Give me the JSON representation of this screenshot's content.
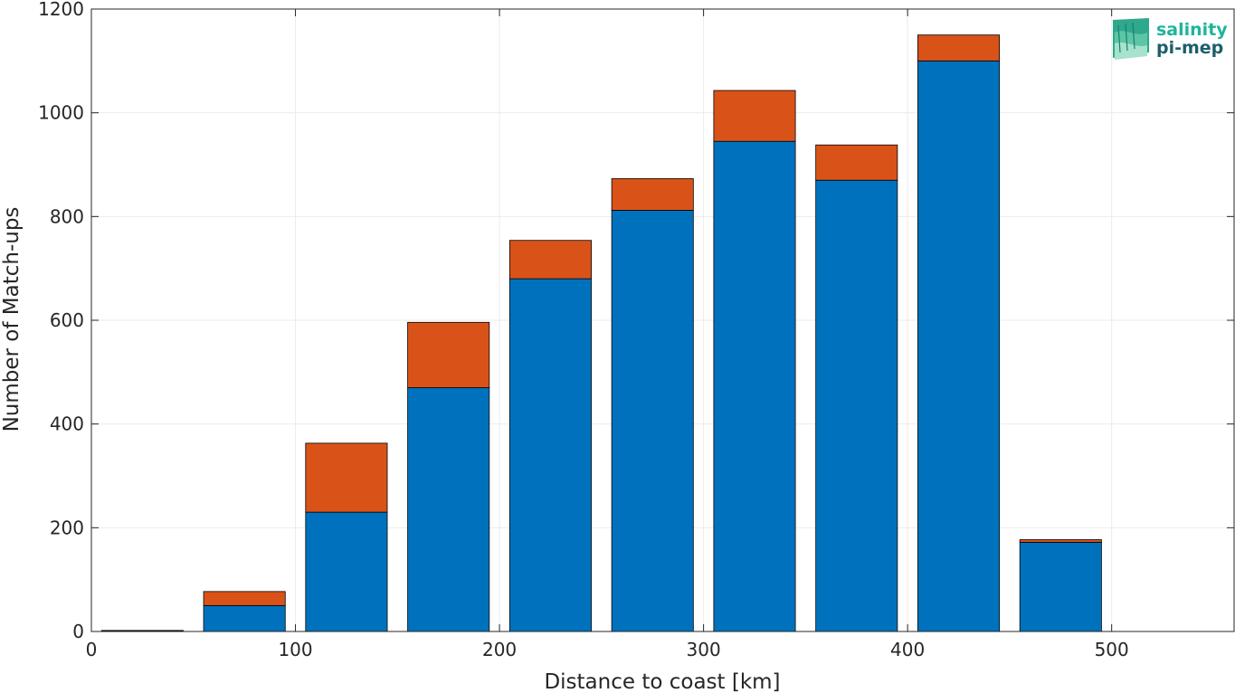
{
  "chart_data": {
    "type": "bar",
    "stacked": true,
    "x": [
      25,
      75,
      125,
      175,
      225,
      275,
      325,
      375,
      425,
      475
    ],
    "bar_width": 40,
    "series": [
      {
        "values": [
          1,
          50,
          230,
          470,
          680,
          812,
          945,
          870,
          1100,
          172
        ],
        "color": "#0072bd"
      },
      {
        "values": [
          1,
          27,
          133,
          126,
          74,
          61,
          98,
          68,
          50,
          5
        ],
        "color": "#d95319"
      }
    ],
    "xlabel": "Distance to coast [km]",
    "ylabel": "Number of Match-ups",
    "xlim": [
      0,
      560
    ],
    "ylim": [
      0,
      1200
    ],
    "xticks": [
      0,
      100,
      200,
      300,
      400,
      500
    ],
    "yticks": [
      0,
      200,
      400,
      600,
      800,
      1000,
      1200
    ],
    "grid": true,
    "legend": "none"
  },
  "logo": {
    "line1": "salinity",
    "line2": "pi-mep",
    "color1": "#1fb59a",
    "color2": "#1c5f6b"
  }
}
